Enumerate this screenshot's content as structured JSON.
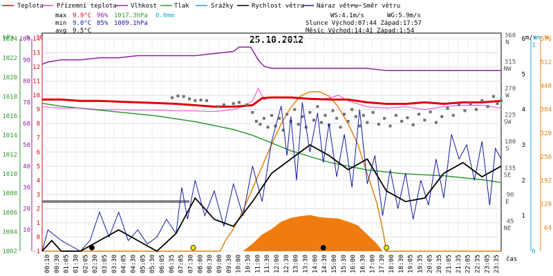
{
  "chart_data": {
    "type": "line",
    "title": "25.10.2012",
    "x_label": "čas",
    "legend": [
      {
        "key": "temp",
        "label": "Teplota",
        "color": "#e0000a"
      },
      {
        "key": "feels",
        "label": "Přízemní teplota",
        "color": "#e040e0"
      },
      {
        "key": "hum",
        "label": "Vlhkost",
        "color": "#9020a0"
      },
      {
        "key": "press",
        "label": "Tlak",
        "color": "#2e9a2e"
      },
      {
        "key": "precip",
        "label": "Srážky",
        "color": "#10a8d8"
      },
      {
        "key": "wind",
        "label": "Rychlost větru",
        "color": "#000000"
      },
      {
        "key": "gust",
        "label": "Náraz větru",
        "color": "#1018a0"
      },
      {
        "key": "dir",
        "label": "Směr větru",
        "color": "#707070"
      }
    ],
    "stats": {
      "max": {
        "label": "max",
        "temp": "9.9°C",
        "hum": "96%",
        "press": "1017.3hPa",
        "precip": "0.0mm"
      },
      "min": {
        "label": "min",
        "temp": "9.0°C",
        "hum": "85%",
        "press": "1009.1hPa"
      },
      "avg": {
        "label": "avg",
        "temp": "9.5°C"
      }
    },
    "info": {
      "ws": "WS:4.1m/s",
      "wg": "WG:5.9m/s",
      "sun": "Slunce Východ:07:44  Západ:17:57",
      "moon": "Měsíc  Východ:14:41  Západ:1:54"
    },
    "axes": {
      "hpa_title": "hPa",
      "pct_title": "%",
      "c_title": "°C",
      "ms_title": "m/s",
      "mm_title": "mm",
      "w_title": "W",
      "hpa": [
        "1002",
        "1004",
        "1006",
        "1008",
        "1010",
        "1012",
        "1014",
        "1016",
        "1018",
        "1020",
        "1022",
        "1024"
      ],
      "pct": [
        "10",
        "20",
        "30",
        "40",
        "50",
        "60",
        "70",
        "80",
        "90",
        "100"
      ],
      "c": [
        "-1",
        "0",
        "1",
        "2",
        "3",
        "4",
        "5",
        "6",
        "7",
        "8",
        "9",
        "10",
        "11",
        "12",
        "13",
        "14"
      ],
      "dir": [
        {
          "deg": "360",
          "lbl": "N"
        },
        {
          "deg": "315",
          "lbl": "NW"
        },
        {
          "deg": "270",
          "lbl": "W"
        },
        {
          "deg": "225",
          "lbl": "SW"
        },
        {
          "deg": "180",
          "lbl": "S"
        },
        {
          "deg": "135",
          "lbl": "SE"
        },
        {
          "deg": "90",
          "lbl": "E"
        },
        {
          "deg": "45",
          "lbl": "NE"
        }
      ],
      "ms": [
        "1",
        "2",
        "3",
        "4",
        "5",
        "6"
      ],
      "mm": [
        "0",
        "1"
      ],
      "w": [
        "64",
        "128",
        "192",
        "256",
        "320",
        "384",
        "448",
        "512",
        "576"
      ],
      "x_ticks": [
        "00:10",
        "00:30",
        "01:05",
        "01:30",
        "02:05",
        "02:30",
        "03:05",
        "03:30",
        "04:05",
        "04:30",
        "05:05",
        "05:30",
        "06:05",
        "06:35",
        "07:05",
        "07:30",
        "08:00",
        "08:30",
        "09:00",
        "09:30",
        "10:00",
        "10:30",
        "11:00",
        "11:30",
        "12:00",
        "12:30",
        "13:00",
        "13:30",
        "14:00",
        "14:30",
        "15:00",
        "15:30",
        "16:00",
        "16:30",
        "17:00",
        "17:30",
        "18:00",
        "18:30",
        "19:05",
        "19:35",
        "20:05",
        "20:35",
        "21:05",
        "21:35",
        "22:05",
        "22:35",
        "23:05",
        "23:35"
      ]
    },
    "range": {
      "temp": [
        -1,
        14
      ],
      "hum": [
        0,
        100
      ],
      "press": [
        1002,
        1024
      ],
      "wind": [
        0,
        6
      ],
      "solar": [
        0,
        576
      ],
      "dir": [
        0,
        360
      ],
      "hours": [
        0,
        24
      ]
    },
    "series_temp": [
      [
        0,
        9.7
      ],
      [
        1,
        9.7
      ],
      [
        2,
        9.6
      ],
      [
        3,
        9.6
      ],
      [
        4,
        9.55
      ],
      [
        5,
        9.5
      ],
      [
        6,
        9.45
      ],
      [
        7,
        9.4
      ],
      [
        8,
        9.3
      ],
      [
        9,
        9.2
      ],
      [
        10,
        9.2
      ],
      [
        11,
        9.3
      ],
      [
        11.5,
        9.8
      ],
      [
        12,
        9.85
      ],
      [
        13,
        9.85
      ],
      [
        14,
        9.75
      ],
      [
        15,
        9.7
      ],
      [
        16,
        9.7
      ],
      [
        17,
        9.5
      ],
      [
        18,
        9.4
      ],
      [
        19,
        9.4
      ],
      [
        20,
        9.5
      ],
      [
        21,
        9.4
      ],
      [
        22,
        9.5
      ],
      [
        23,
        9.5
      ],
      [
        24,
        9.6
      ]
    ],
    "series_feels": [
      [
        0,
        9.2
      ],
      [
        1,
        9.1
      ],
      [
        2,
        9.1
      ],
      [
        3,
        9.0
      ],
      [
        4,
        9.0
      ],
      [
        5,
        8.95
      ],
      [
        6,
        8.95
      ],
      [
        7,
        8.9
      ],
      [
        8,
        8.9
      ],
      [
        9,
        8.85
      ],
      [
        10,
        9.0
      ],
      [
        10.5,
        9.2
      ],
      [
        11,
        9.6
      ],
      [
        11.3,
        10.5
      ],
      [
        11.6,
        9.7
      ],
      [
        12,
        9.9
      ],
      [
        13,
        9.8
      ],
      [
        14,
        9.7
      ],
      [
        15,
        9.8
      ],
      [
        15.5,
        10.0
      ],
      [
        16,
        9.6
      ],
      [
        17,
        9.2
      ],
      [
        18,
        9.1
      ],
      [
        19,
        9.2
      ],
      [
        20,
        9.0
      ],
      [
        21,
        9.2
      ],
      [
        22,
        9.3
      ],
      [
        23,
        9.3
      ],
      [
        24,
        9.1
      ]
    ],
    "series_hum": [
      [
        0,
        88
      ],
      [
        0.3,
        89
      ],
      [
        1,
        90
      ],
      [
        2,
        90
      ],
      [
        3,
        91
      ],
      [
        4,
        91
      ],
      [
        5,
        92
      ],
      [
        6,
        92
      ],
      [
        7,
        92
      ],
      [
        8,
        92
      ],
      [
        9,
        93
      ],
      [
        10,
        94
      ],
      [
        10.3,
        96
      ],
      [
        10.9,
        96
      ],
      [
        11.3,
        90
      ],
      [
        11.6,
        87
      ],
      [
        12,
        86
      ],
      [
        13,
        86
      ],
      [
        14,
        86
      ],
      [
        15,
        86
      ],
      [
        16,
        86
      ],
      [
        17,
        86
      ],
      [
        18,
        85
      ],
      [
        19,
        85
      ],
      [
        20,
        85
      ],
      [
        21,
        85
      ],
      [
        22,
        85
      ],
      [
        23,
        85
      ],
      [
        24,
        85
      ]
    ],
    "series_press": [
      [
        0,
        1017.3
      ],
      [
        1,
        1017.0
      ],
      [
        2,
        1016.8
      ],
      [
        3,
        1016.6
      ],
      [
        4,
        1016.4
      ],
      [
        5,
        1016.2
      ],
      [
        6,
        1016.0
      ],
      [
        7,
        1015.7
      ],
      [
        8,
        1015.4
      ],
      [
        9,
        1015.0
      ],
      [
        10,
        1014.6
      ],
      [
        11,
        1014.0
      ],
      [
        12,
        1013.2
      ],
      [
        13,
        1012.4
      ],
      [
        14,
        1011.8
      ],
      [
        15,
        1011.2
      ],
      [
        16,
        1010.8
      ],
      [
        17,
        1010.4
      ],
      [
        18,
        1010.2
      ],
      [
        19,
        1010.0
      ],
      [
        20,
        1009.9
      ],
      [
        21,
        1009.8
      ],
      [
        22,
        1009.6
      ],
      [
        23,
        1009.4
      ],
      [
        24,
        1009.1
      ]
    ],
    "series_wind": [
      [
        0,
        0
      ],
      [
        0.5,
        0.3
      ],
      [
        1,
        0
      ],
      [
        2,
        0
      ],
      [
        3,
        0.3
      ],
      [
        4,
        0.6
      ],
      [
        5,
        0.3
      ],
      [
        6,
        0
      ],
      [
        7,
        0.5
      ],
      [
        8,
        1.5
      ],
      [
        9,
        0.9
      ],
      [
        10,
        0.7
      ],
      [
        11,
        1.4
      ],
      [
        12,
        2.2
      ],
      [
        13,
        2.6
      ],
      [
        14,
        3.0
      ],
      [
        15,
        2.7
      ],
      [
        16,
        2.3
      ],
      [
        17,
        2.6
      ],
      [
        18,
        1.7
      ],
      [
        19,
        1.4
      ],
      [
        20,
        1.5
      ],
      [
        21,
        2.2
      ],
      [
        22,
        2.5
      ],
      [
        23,
        2.1
      ],
      [
        24,
        2.4
      ]
    ],
    "series_gust": [
      [
        0,
        0
      ],
      [
        0.3,
        0.6
      ],
      [
        1,
        0.3
      ],
      [
        2,
        0
      ],
      [
        2.5,
        0.3
      ],
      [
        3,
        1.1
      ],
      [
        3.5,
        0.4
      ],
      [
        4,
        1.1
      ],
      [
        4.5,
        0.3
      ],
      [
        5,
        0.6
      ],
      [
        5.5,
        0.2
      ],
      [
        6,
        0.4
      ],
      [
        6.5,
        0.9
      ],
      [
        7,
        0.5
      ],
      [
        7.3,
        1.8
      ],
      [
        7.6,
        0.9
      ],
      [
        8,
        2.0
      ],
      [
        8.5,
        1.0
      ],
      [
        9,
        1.7
      ],
      [
        9.5,
        0.7
      ],
      [
        10,
        1.9
      ],
      [
        10.5,
        1.0
      ],
      [
        11,
        2.4
      ],
      [
        11.5,
        1.4
      ],
      [
        12,
        3.1
      ],
      [
        12.5,
        4.1
      ],
      [
        12.8,
        2.7
      ],
      [
        13,
        3.8
      ],
      [
        13.3,
        2.0
      ],
      [
        13.6,
        4.2
      ],
      [
        14,
        2.8
      ],
      [
        14.4,
        3.9
      ],
      [
        14.7,
        2.5
      ],
      [
        15,
        3.6
      ],
      [
        15.4,
        2.1
      ],
      [
        15.8,
        3.3
      ],
      [
        16.2,
        1.8
      ],
      [
        16.6,
        4.0
      ],
      [
        17,
        1.9
      ],
      [
        17.4,
        2.7
      ],
      [
        17.8,
        1.0
      ],
      [
        18.2,
        2.3
      ],
      [
        18.6,
        1.2
      ],
      [
        19,
        2.2
      ],
      [
        19.4,
        0.9
      ],
      [
        19.8,
        2.0
      ],
      [
        20.2,
        1.3
      ],
      [
        20.6,
        2.6
      ],
      [
        21,
        1.5
      ],
      [
        21.4,
        3.3
      ],
      [
        21.8,
        2.6
      ],
      [
        22.2,
        3.0
      ],
      [
        22.6,
        2.0
      ],
      [
        23,
        3.1
      ],
      [
        23.4,
        1.3
      ],
      [
        23.7,
        2.9
      ],
      [
        24,
        2.6
      ]
    ],
    "series_solar": [
      [
        0,
        0
      ],
      [
        9.3,
        0
      ],
      [
        9.6,
        30
      ],
      [
        10,
        60
      ],
      [
        10.5,
        110
      ],
      [
        11,
        170
      ],
      [
        11.5,
        230
      ],
      [
        12,
        290
      ],
      [
        12.5,
        345
      ],
      [
        13,
        390
      ],
      [
        13.5,
        420
      ],
      [
        14,
        432
      ],
      [
        14.5,
        432
      ],
      [
        15,
        420
      ],
      [
        15.5,
        390
      ],
      [
        16,
        345
      ],
      [
        16.5,
        290
      ],
      [
        17,
        210
      ],
      [
        17.5,
        130
      ],
      [
        17.8,
        60
      ],
      [
        18,
        0
      ],
      [
        24,
        0
      ]
    ],
    "series_solar_fill": [
      [
        10.5,
        0
      ],
      [
        11,
        20
      ],
      [
        11.5,
        45
      ],
      [
        12,
        60
      ],
      [
        12.5,
        80
      ],
      [
        13,
        90
      ],
      [
        13.5,
        95
      ],
      [
        14,
        98
      ],
      [
        14.5,
        92
      ],
      [
        15,
        90
      ],
      [
        15.5,
        88
      ],
      [
        16,
        80
      ],
      [
        16.5,
        70
      ],
      [
        17,
        45
      ],
      [
        17.5,
        20
      ],
      [
        17.8,
        0
      ]
    ],
    "series_dir": [
      [
        6.8,
        260
      ],
      [
        7.1,
        263
      ],
      [
        7.4,
        262
      ],
      [
        7.7,
        258
      ],
      [
        8.0,
        255
      ],
      [
        8.3,
        256
      ],
      [
        8.6,
        255
      ],
      [
        9.2,
        245
      ],
      [
        9.5,
        248
      ],
      [
        10.0,
        250
      ],
      [
        10.3,
        252
      ],
      [
        10.7,
        248
      ],
      [
        11.0,
        235
      ],
      [
        11.2,
        220
      ],
      [
        11.4,
        215
      ],
      [
        11.6,
        225
      ],
      [
        11.8,
        210
      ],
      [
        12.0,
        230
      ],
      [
        12.2,
        212
      ],
      [
        12.4,
        225
      ],
      [
        12.6,
        205
      ],
      [
        12.8,
        232
      ],
      [
        13.0,
        220
      ],
      [
        13.2,
        240
      ],
      [
        13.4,
        215
      ],
      [
        13.6,
        228
      ],
      [
        13.8,
        210
      ],
      [
        14.0,
        235
      ],
      [
        14.2,
        222
      ],
      [
        14.4,
        245
      ],
      [
        14.6,
        218
      ],
      [
        14.8,
        230
      ],
      [
        15.0,
        214
      ],
      [
        15.2,
        238
      ],
      [
        15.4,
        225
      ],
      [
        15.6,
        210
      ],
      [
        15.8,
        232
      ],
      [
        16.0,
        220
      ],
      [
        16.2,
        240
      ],
      [
        16.4,
        228
      ],
      [
        16.6,
        212
      ],
      [
        16.8,
        230
      ],
      [
        17.0,
        218
      ],
      [
        17.3,
        235
      ],
      [
        17.6,
        215
      ],
      [
        17.9,
        225
      ],
      [
        18.2,
        212
      ],
      [
        18.5,
        230
      ],
      [
        18.8,
        220
      ],
      [
        19.1,
        226
      ],
      [
        19.4,
        214
      ],
      [
        19.7,
        232
      ],
      [
        20.0,
        222
      ],
      [
        20.3,
        236
      ],
      [
        20.6,
        218
      ],
      [
        20.9,
        228
      ],
      [
        21.2,
        242
      ],
      [
        21.5,
        230
      ],
      [
        21.8,
        248
      ],
      [
        22.1,
        238
      ],
      [
        22.4,
        250
      ],
      [
        22.7,
        240
      ],
      [
        23.0,
        255
      ],
      [
        23.3,
        245
      ],
      [
        23.6,
        262
      ],
      [
        23.8,
        250
      ],
      [
        24.0,
        255
      ]
    ],
    "series_dir_bar": [
      [
        0,
        1.4
      ],
      [
        7.7,
        1.4
      ]
    ],
    "events": [
      {
        "t": 2.6,
        "color": "#000000"
      },
      {
        "t": 7.9,
        "color": "#e8e800"
      },
      {
        "t": 14.7,
        "color": "#000000"
      },
      {
        "t": 18.0,
        "color": "#e8e800"
      }
    ]
  }
}
